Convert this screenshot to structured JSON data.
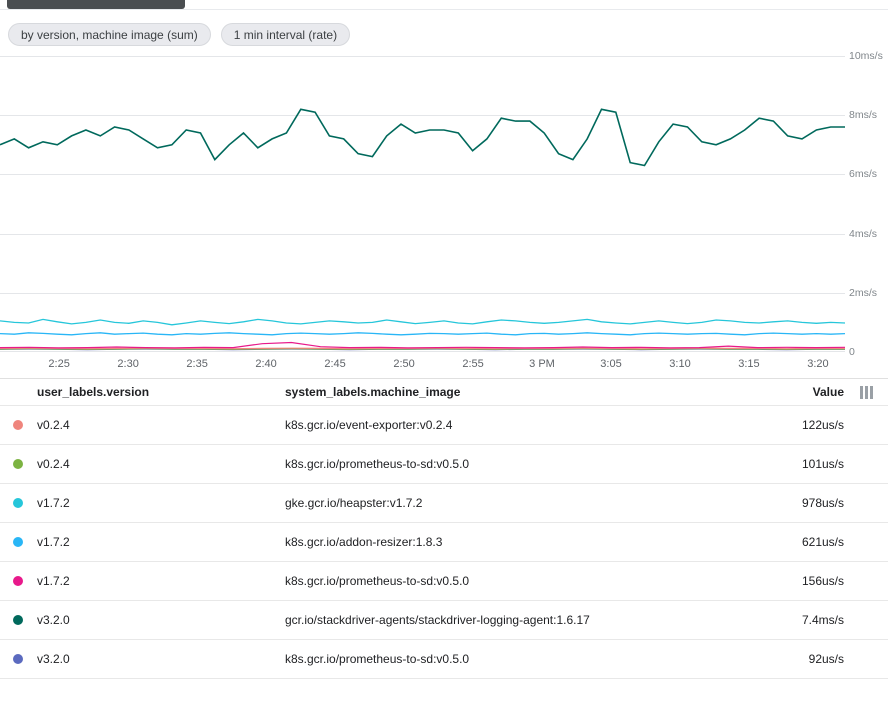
{
  "header": {
    "chips": [
      {
        "label": "by version, machine image (sum)"
      },
      {
        "label": "1 min interval (rate)"
      }
    ]
  },
  "chart_data": {
    "type": "line",
    "title": "",
    "xlabel": "",
    "ylabel": "ms/s",
    "ylim": [
      0,
      10
    ],
    "grid": true,
    "legend_position": "table-below",
    "y_ticks": [
      "10ms/s",
      "8ms/s",
      "6ms/s",
      "4ms/s",
      "2ms/s",
      "0"
    ],
    "x_ticks": [
      "2:25",
      "2:30",
      "2:35",
      "2:40",
      "2:45",
      "2:50",
      "2:55",
      "3 PM",
      "3:05",
      "3:10",
      "3:15",
      "3:20"
    ],
    "x_tick_span": [
      0.07,
      0.968
    ],
    "series": [
      {
        "version": "v3.2.0",
        "name": "gcr.io/stackdriver-agents/stackdriver-logging-agent:1.6.17",
        "color": "#00695c",
        "width": 1.6,
        "values": [
          7.0,
          7.2,
          6.9,
          7.1,
          7.0,
          7.3,
          7.5,
          7.3,
          7.6,
          7.5,
          7.2,
          6.9,
          7.0,
          7.5,
          7.4,
          6.5,
          7.0,
          7.4,
          6.9,
          7.2,
          7.4,
          8.2,
          8.1,
          7.3,
          7.2,
          6.7,
          6.6,
          7.3,
          7.7,
          7.4,
          7.5,
          7.5,
          7.4,
          6.8,
          7.2,
          7.9,
          7.8,
          7.8,
          7.4,
          6.7,
          6.5,
          7.2,
          8.2,
          8.1,
          6.4,
          6.3,
          7.1,
          7.7,
          7.6,
          7.1,
          7.0,
          7.2,
          7.5,
          7.9,
          7.8,
          7.3,
          7.2,
          7.5,
          7.6,
          7.6
        ]
      },
      {
        "version": "v1.7.2",
        "name": "gke.gcr.io/heapster:v1.7.2",
        "color": "#26c6da",
        "width": 1.3,
        "values": [
          1.05,
          1.0,
          0.98,
          1.1,
          1.02,
          0.95,
          1.0,
          1.08,
          1.0,
          0.97,
          1.05,
          1.0,
          0.92,
          0.98,
          1.05,
          1.0,
          0.96,
          1.02,
          1.1,
          1.05,
          0.98,
          0.95,
          1.0,
          1.05,
          1.02,
          0.98,
          1.0,
          1.08,
          1.02,
          0.96,
          1.0,
          1.05,
          0.98,
          0.95,
          1.02,
          1.08,
          1.05,
          1.0,
          0.97,
          1.0,
          1.05,
          1.1,
          1.02,
          0.98,
          0.95,
          1.0,
          1.05,
          1.0,
          0.96,
          1.0,
          1.08,
          1.05,
          1.0,
          0.98,
          1.02,
          1.05,
          1.0,
          0.97,
          1.0,
          0.98
        ]
      },
      {
        "version": "v1.7.2",
        "name": "k8s.gcr.io/addon-resizer:1.8.3",
        "color": "#29b6f6",
        "width": 1.3,
        "values": [
          0.62,
          0.6,
          0.65,
          0.63,
          0.6,
          0.58,
          0.62,
          0.65,
          0.6,
          0.62,
          0.64,
          0.6,
          0.58,
          0.62,
          0.6,
          0.63,
          0.65,
          0.62,
          0.6,
          0.58,
          0.62,
          0.64,
          0.62,
          0.6,
          0.62,
          0.65,
          0.63,
          0.6,
          0.58,
          0.6,
          0.63,
          0.62,
          0.6,
          0.62,
          0.64,
          0.6,
          0.58,
          0.62,
          0.63,
          0.6,
          0.62,
          0.65,
          0.62,
          0.6,
          0.58,
          0.62,
          0.64,
          0.62,
          0.6,
          0.62,
          0.63,
          0.6,
          0.58,
          0.62,
          0.64,
          0.62,
          0.6,
          0.62,
          0.6,
          0.62
        ]
      },
      {
        "version": "v1.7.2",
        "name": "k8s.gcr.io/prometheus-to-sd:v0.5.0",
        "color": "#e8198b",
        "width": 1.2,
        "values": [
          0.15,
          0.16,
          0.14,
          0.15,
          0.17,
          0.15,
          0.14,
          0.16,
          0.15,
          0.28,
          0.32,
          0.18,
          0.15,
          0.16,
          0.14,
          0.15,
          0.16,
          0.15,
          0.14,
          0.15,
          0.17,
          0.15,
          0.16,
          0.14,
          0.15,
          0.2,
          0.15,
          0.16,
          0.15,
          0.16
        ]
      },
      {
        "version": "v0.2.4",
        "name": "k8s.gcr.io/event-exporter:v0.2.4",
        "color": "#ef857d",
        "width": 1.2,
        "values": [
          0.12,
          0.13,
          0.12,
          0.11,
          0.12,
          0.13,
          0.12,
          0.12,
          0.11,
          0.12,
          0.13,
          0.12,
          0.11,
          0.12,
          0.12,
          0.13,
          0.12,
          0.11,
          0.12,
          0.12,
          0.13,
          0.12,
          0.11,
          0.12,
          0.13,
          0.12,
          0.12,
          0.11,
          0.12,
          0.12
        ]
      },
      {
        "version": "v0.2.4",
        "name": "k8s.gcr.io/prometheus-to-sd:v0.5.0",
        "color": "#7cb342",
        "width": 1.2,
        "values": [
          0.1,
          0.11,
          0.1,
          0.09,
          0.1,
          0.11,
          0.1,
          0.1,
          0.09,
          0.1,
          0.11,
          0.1,
          0.09,
          0.1,
          0.1,
          0.11,
          0.1,
          0.09,
          0.1,
          0.1,
          0.11,
          0.1,
          0.09,
          0.1,
          0.11,
          0.1,
          0.1,
          0.09,
          0.1,
          0.1
        ]
      },
      {
        "version": "v3.2.0",
        "name": "k8s.gcr.io/prometheus-to-sd:v0.5.0",
        "color": "#5b6abf",
        "width": 1.2,
        "values": [
          0.09,
          0.1,
          0.09,
          0.08,
          0.09,
          0.1,
          0.09,
          0.09,
          0.08,
          0.09,
          0.1,
          0.09,
          0.08,
          0.09,
          0.09,
          0.1,
          0.09,
          0.08,
          0.09,
          0.09,
          0.1,
          0.09,
          0.08,
          0.09,
          0.1,
          0.09,
          0.09,
          0.08,
          0.09,
          0.09
        ]
      }
    ]
  },
  "table": {
    "columns": [
      "user_labels.version",
      "system_labels.machine_image",
      "Value"
    ],
    "rows": [
      {
        "color": "#ef857d",
        "version": "v0.2.4",
        "image": "k8s.gcr.io/event-exporter:v0.2.4",
        "value": "122us/s"
      },
      {
        "color": "#7cb342",
        "version": "v0.2.4",
        "image": "k8s.gcr.io/prometheus-to-sd:v0.5.0",
        "value": "101us/s"
      },
      {
        "color": "#26c6da",
        "version": "v1.7.2",
        "image": "gke.gcr.io/heapster:v1.7.2",
        "value": "978us/s"
      },
      {
        "color": "#29b6f6",
        "version": "v1.7.2",
        "image": "k8s.gcr.io/addon-resizer:1.8.3",
        "value": "621us/s"
      },
      {
        "color": "#e8198b",
        "version": "v1.7.2",
        "image": "k8s.gcr.io/prometheus-to-sd:v0.5.0",
        "value": "156us/s"
      },
      {
        "color": "#00695c",
        "version": "v3.2.0",
        "image": "gcr.io/stackdriver-agents/stackdriver-logging-agent:1.6.17",
        "value": "7.4ms/s"
      },
      {
        "color": "#5b6abf",
        "version": "v3.2.0",
        "image": "k8s.gcr.io/prometheus-to-sd:v0.5.0",
        "value": "92us/s"
      }
    ]
  }
}
